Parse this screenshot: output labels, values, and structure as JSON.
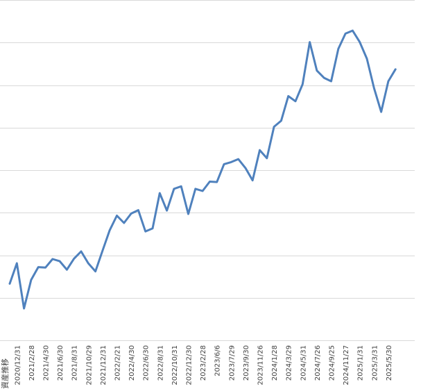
{
  "chart_data": {
    "type": "line",
    "title": "",
    "xlabel": "",
    "ylabel": "資産推移",
    "grid": true,
    "legend": "none",
    "ylim": [
      0,
      8
    ],
    "x": [
      "2020/11/30",
      "2020/12/31",
      "2021/1/29",
      "2021/2/28",
      "2021/3/31",
      "2021/4/30",
      "2021/5/31",
      "2021/6/30",
      "2021/7/30",
      "2021/8/31",
      "2021/9/30",
      "2021/10/29",
      "2021/11/30",
      "2021/12/31",
      "2022/1/31",
      "2022/2/21",
      "2022/3/31",
      "2022/4/30",
      "2022/5/31",
      "2022/6/30",
      "2022/7/29",
      "2022/8/31",
      "2022/9/30",
      "2022/10/31",
      "2022/11/30",
      "2022/12/30",
      "2023/1/31",
      "2023/2/28",
      "2023/3/31",
      "2023/6/6",
      "2023/6/30",
      "2023/7/29",
      "2023/8/31",
      "2023/9/30",
      "2023/10/31",
      "2023/11/26",
      "2023/12/29",
      "2024/1/28",
      "2024/2/29",
      "2024/3/29",
      "2024/4/30",
      "2024/5/31",
      "2024/6/28",
      "2024/7/26",
      "2024/8/30",
      "2024/9/25",
      "2024/10/31",
      "2024/11/27",
      "2024/12/30",
      "2025/1/31",
      "2025/2/28",
      "2025/3/31",
      "2025/4/30",
      "2025/5/30",
      "2025/6/30"
    ],
    "x_tick_labels": [
      "2020/12/31",
      "2021/2/28",
      "2021/4/30",
      "2021/6/30",
      "2021/8/31",
      "2021/10/29",
      "2021/12/31",
      "2022/2/21",
      "2022/4/30",
      "2022/6/30",
      "2022/8/31",
      "2022/10/31",
      "2022/12/30",
      "2023/2/28",
      "2023/6/6",
      "2023/7/29",
      "2023/9/30",
      "2023/11/26",
      "2024/1/28",
      "2024/3/29",
      "2024/5/31",
      "2024/7/26",
      "2024/9/25",
      "2024/11/27",
      "2025/1/31",
      "2025/3/31",
      "2025/5/30"
    ],
    "series": [
      {
        "values": [
          1.33,
          1.81,
          0.75,
          1.42,
          1.72,
          1.71,
          1.91,
          1.86,
          1.66,
          1.92,
          2.09,
          1.81,
          1.62,
          2.11,
          2.59,
          2.93,
          2.76,
          2.98,
          3.06,
          2.56,
          2.63,
          3.46,
          3.05,
          3.56,
          3.62,
          2.97,
          3.56,
          3.51,
          3.73,
          3.72,
          4.14,
          4.19,
          4.26,
          4.05,
          3.76,
          4.47,
          4.28,
          5.02,
          5.16,
          5.74,
          5.62,
          6.02,
          7.01,
          6.34,
          6.17,
          6.09,
          6.85,
          7.21,
          7.28,
          7.01,
          6.62,
          5.93,
          5.37,
          6.09,
          6.37
        ]
      }
    ],
    "colors": {
      "series": "#4f81bd",
      "grid": "#d9d9d9"
    }
  }
}
